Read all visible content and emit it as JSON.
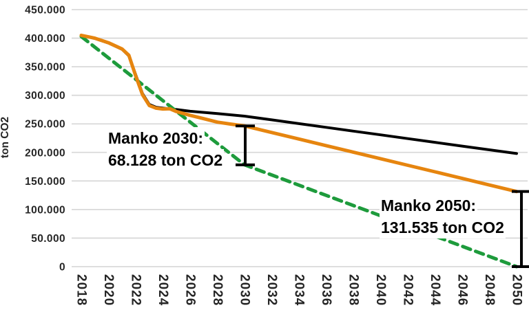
{
  "chart_data": {
    "type": "line",
    "title": "",
    "xlabel": "",
    "ylabel": "ton CO2",
    "xlim": [
      2018,
      2050
    ],
    "ylim": [
      0,
      450000
    ],
    "grid": "horizontal",
    "legend": "none",
    "colors": {
      "reference_line": "#000000",
      "projection_line": "#E6850F",
      "target_line": "#1E9B3C",
      "gridline": "#D9D9D9",
      "tick_text": "#262626",
      "error_bar": "#000000"
    },
    "yticks": {
      "values": [
        0,
        50000,
        100000,
        150000,
        200000,
        250000,
        300000,
        350000,
        400000,
        450000
      ],
      "labels": [
        "0",
        "50.000",
        "100.000",
        "150.000",
        "200.000",
        "250.000",
        "300.000",
        "350.000",
        "400.000",
        "450.000"
      ]
    },
    "xticks": [
      2018,
      2020,
      2022,
      2024,
      2026,
      2028,
      2030,
      2032,
      2034,
      2036,
      2038,
      2040,
      2042,
      2044,
      2046,
      2048,
      2050
    ],
    "series": [
      {
        "name": "reference-black",
        "color": "#000000",
        "width": 4,
        "dash": null,
        "x": [
          2018,
          2019,
          2020,
          2021,
          2021.5,
          2022,
          2022.5,
          2023,
          2023.5,
          2024,
          2025,
          2026,
          2028,
          2030,
          2032,
          2034,
          2036,
          2038,
          2040,
          2042,
          2044,
          2046,
          2048,
          2050
        ],
        "y": [
          405000,
          399500,
          391500,
          380500,
          369000,
          336000,
          303000,
          284000,
          279000,
          277500,
          275000,
          272000,
          268000,
          263500,
          257000,
          250400,
          243900,
          237300,
          230800,
          224200,
          217700,
          211100,
          204600,
          198000
        ]
      },
      {
        "name": "projection-orange",
        "color": "#E6850F",
        "width": 5,
        "dash": null,
        "x": [
          2018,
          2019,
          2020,
          2021,
          2021.5,
          2022,
          2022.5,
          2023,
          2023.5,
          2024,
          2024.5,
          2025,
          2026,
          2027,
          2028,
          2029,
          2030,
          2032,
          2034,
          2036,
          2038,
          2040,
          2042,
          2044,
          2046,
          2048,
          2050
        ],
        "y": [
          405000,
          400000,
          392000,
          381000,
          370000,
          334000,
          301000,
          282000,
          277500,
          276000,
          276500,
          271500,
          265000,
          259000,
          253000,
          249500,
          246400,
          234900,
          223400,
          211900,
          200500,
          189000,
          177500,
          166000,
          154500,
          143000,
          131535
        ]
      },
      {
        "name": "target-green-dashed",
        "color": "#1E9B3C",
        "width": 5,
        "dash": [
          12,
          8
        ],
        "x": [
          2018,
          2030,
          2050
        ],
        "y": [
          403000,
          178272,
          0
        ]
      }
    ],
    "error_bars": [
      {
        "name": "manko-2030-bar",
        "x": 2030,
        "dx": 1,
        "top": 246400,
        "bottom": 178272
      },
      {
        "name": "manko-2050-bar",
        "x": 2050,
        "dx": 7,
        "top": 131535,
        "bottom": 0
      }
    ],
    "annotations": [
      {
        "line1": "Manko 2030:",
        "line2": "68.128 ton CO2"
      },
      {
        "line1": "Manko 2050:",
        "line2": "131.535 ton CO2"
      }
    ]
  }
}
